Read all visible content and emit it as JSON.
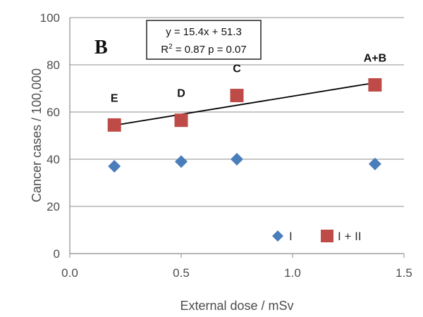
{
  "chart_data": {
    "type": "scatter",
    "panel_label": "B",
    "xlabel": "External dose / mSv",
    "ylabel": "Cancer cases / 100,000",
    "xlim": [
      0.0,
      1.5
    ],
    "ylim": [
      0,
      100
    ],
    "x_ticks": [
      "0.0",
      "0.5",
      "1.0",
      "1.5"
    ],
    "y_ticks": [
      "0",
      "20",
      "40",
      "60",
      "80",
      "100"
    ],
    "grid": "horizontal",
    "series": [
      {
        "name": "I",
        "marker": "diamond",
        "color": "#4a7ebb",
        "points": [
          {
            "x": 0.2,
            "y": 37
          },
          {
            "x": 0.5,
            "y": 39
          },
          {
            "x": 0.75,
            "y": 40
          },
          {
            "x": 1.37,
            "y": 38
          }
        ]
      },
      {
        "name": "I + II",
        "marker": "square",
        "color": "#be4b48",
        "points": [
          {
            "x": 0.2,
            "y": 54.5,
            "label": "E"
          },
          {
            "x": 0.5,
            "y": 56.5,
            "label": "D"
          },
          {
            "x": 0.75,
            "y": 67,
            "label": "C"
          },
          {
            "x": 1.37,
            "y": 71.5,
            "label": "A+B"
          }
        ]
      }
    ],
    "trendline": {
      "series": "I + II",
      "x_range": [
        0.2,
        1.37
      ],
      "slope": 15.4,
      "intercept": 51.3,
      "equation": "y = 15.4x + 51.3",
      "stats_prefix": "R",
      "stats_sup": "2",
      "stats_rest": " = 0.87 p = 0.07"
    },
    "legend_position": "bottom-right"
  }
}
